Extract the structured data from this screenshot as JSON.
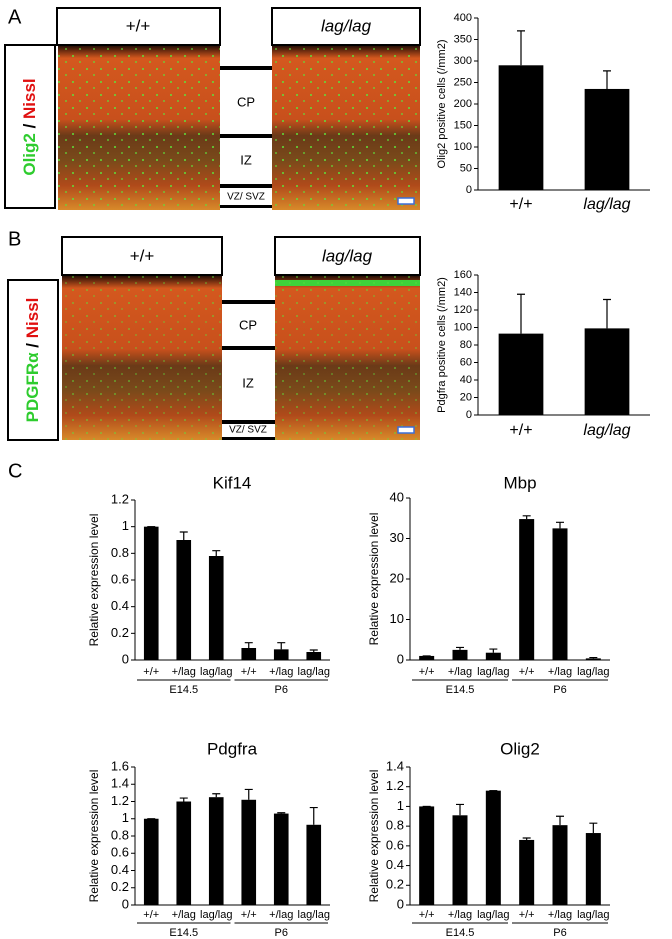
{
  "panels": {
    "A": {
      "letter": "A",
      "wt": "+/+",
      "mut": "lag/lag",
      "stain": [
        "Olig2",
        " / ",
        "Nissl"
      ],
      "zones": [
        "CP",
        "IZ",
        "VZ/ SVZ"
      ]
    },
    "B": {
      "letter": "B",
      "wt": "+/+",
      "mut": "lag/lag",
      "stain": [
        "PDGFRα",
        " / ",
        "Nissl"
      ],
      "zones": [
        "CP",
        "IZ",
        "VZ/ SVZ"
      ]
    },
    "C": {
      "letter": "C"
    }
  },
  "chart_data": [
    {
      "type": "bar",
      "y_label": "Olig2 positive cells (/mm2)",
      "categories": [
        "+/+",
        "lag/lag"
      ],
      "values": [
        290,
        235
      ],
      "errors": [
        80,
        42
      ],
      "color": "#000000",
      "ylim": [
        0,
        400
      ],
      "yticks": [
        0,
        50,
        100,
        150,
        200,
        250,
        300,
        350,
        400
      ]
    },
    {
      "type": "bar",
      "y_label": "Pdgfra positive cells (/mm2)",
      "categories": [
        "+/+",
        "lag/lag"
      ],
      "values": [
        93,
        99
      ],
      "errors": [
        45,
        33
      ],
      "color": "#000000",
      "ylim": [
        0,
        160
      ],
      "yticks": [
        0,
        20,
        40,
        60,
        80,
        100,
        120,
        140,
        160
      ]
    },
    {
      "type": "bar",
      "title": "Kif14",
      "y_label": "Relative expression level",
      "categories": [
        "+/+",
        "+/lag",
        "lag/lag",
        "+/+",
        "+/lag",
        "lag/lag"
      ],
      "groups": [
        "E14.5",
        "P6"
      ],
      "values": [
        1,
        0.9,
        0.78,
        0.09,
        0.08,
        0.06
      ],
      "errors": [
        0,
        0.06,
        0.04,
        0.04,
        0.05,
        0.015
      ],
      "color": "#000000",
      "ylim": [
        0,
        1.2
      ],
      "yticks": [
        0,
        0.2,
        0.4,
        0.6,
        0.8,
        1,
        1.2
      ]
    },
    {
      "type": "bar",
      "title": "Mbp",
      "y_label": "Relative expression level",
      "categories": [
        "+/+",
        "+/lag",
        "lag/lag",
        "+/+",
        "+/lag",
        "lag/lag"
      ],
      "groups": [
        "E14.5",
        "P6"
      ],
      "values": [
        1,
        2.5,
        1.8,
        34.8,
        32.5,
        0.4
      ],
      "errors": [
        0,
        0.6,
        0.9,
        0.8,
        1.5,
        0.2
      ],
      "color": "#000000",
      "ylim": [
        0,
        40
      ],
      "yticks": [
        0,
        10,
        20,
        30,
        40
      ]
    },
    {
      "type": "bar",
      "title": "Pdgfra",
      "y_label": "Relative expression level",
      "categories": [
        "+/+",
        "+/lag",
        "lag/lag",
        "+/+",
        "+/lag",
        "lag/lag"
      ],
      "groups": [
        "E14.5",
        "P6"
      ],
      "values": [
        1,
        1.2,
        1.25,
        1.22,
        1.06,
        0.93
      ],
      "errors": [
        0,
        0.04,
        0.04,
        0.12,
        0.01,
        0.2
      ],
      "color": "#000000",
      "ylim": [
        0,
        1.6
      ],
      "yticks": [
        0,
        0.2,
        0.4,
        0.6,
        0.8,
        1,
        1.2,
        1.4,
        1.6
      ]
    },
    {
      "type": "bar",
      "title": "Olig2",
      "y_label": "Relative expression level",
      "categories": [
        "+/+",
        "+/lag",
        "lag/lag",
        "+/+",
        "+/lag",
        "lag/lag"
      ],
      "groups": [
        "E14.5",
        "P6"
      ],
      "values": [
        1,
        0.91,
        1.16,
        0.66,
        0.81,
        0.73
      ],
      "errors": [
        0,
        0.11,
        0,
        0.02,
        0.09,
        0.1
      ],
      "color": "#000000",
      "ylim": [
        0,
        1.4
      ],
      "yticks": [
        0,
        0.2,
        0.4,
        0.6,
        0.8,
        1,
        1.2,
        1.4
      ]
    }
  ]
}
